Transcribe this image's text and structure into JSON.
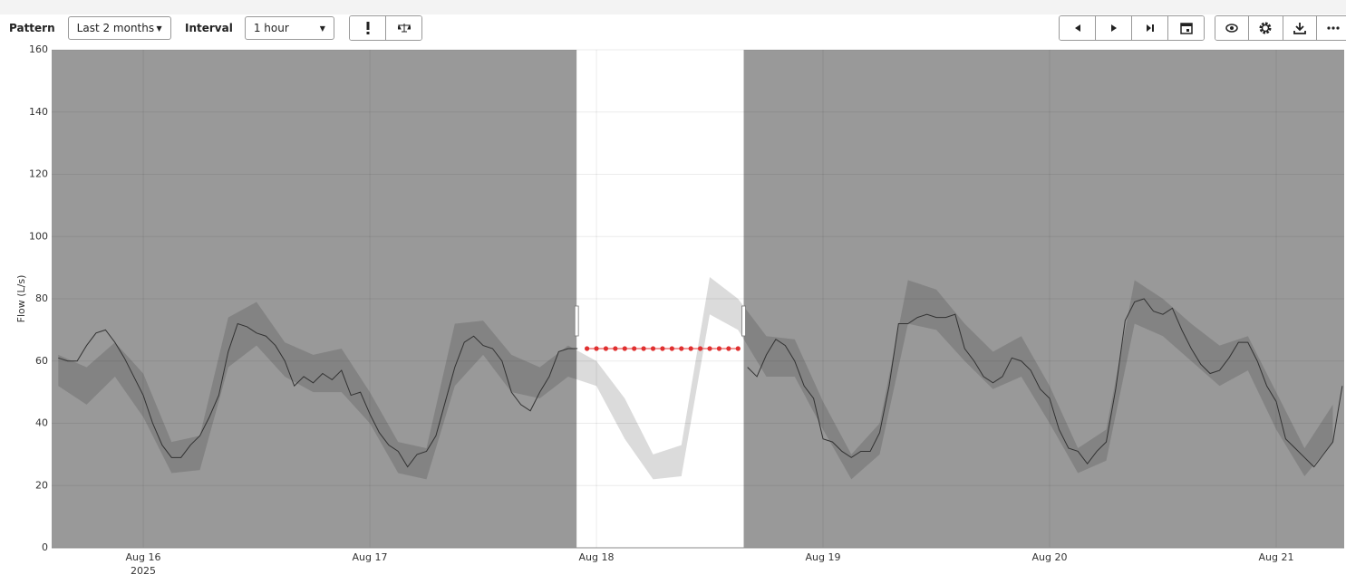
{
  "toolbar": {
    "pattern_label": "Pattern",
    "pattern_value": "Last 2 months",
    "interval_label": "Interval",
    "interval_value": "1 hour"
  },
  "chart_data": {
    "type": "line",
    "y_label": "Flow (L/s)",
    "ylim": [
      0,
      160
    ],
    "yticks": [
      0,
      20,
      40,
      60,
      80,
      100,
      120,
      140,
      160
    ],
    "xlim": [
      -9.7,
      127.2
    ],
    "xticks": [
      {
        "value": 0,
        "label": "Aug 16"
      },
      {
        "value": 24,
        "label": "Aug 17"
      },
      {
        "value": 48,
        "label": "Aug 18"
      },
      {
        "value": 72,
        "label": "Aug 19"
      },
      {
        "value": 96,
        "label": "Aug 20"
      },
      {
        "value": 120,
        "label": "Aug 21"
      }
    ],
    "x_year_label": "2025",
    "grid": true,
    "highlight_range": [
      45.9,
      63.6
    ],
    "x": [
      -9,
      -8,
      -7,
      -6,
      -5,
      -4,
      -3,
      -2,
      -1,
      0,
      1,
      2,
      3,
      4,
      5,
      6,
      7,
      8,
      9,
      10,
      11,
      12,
      13,
      14,
      15,
      16,
      17,
      18,
      19,
      20,
      21,
      22,
      23,
      24,
      25,
      26,
      27,
      28,
      29,
      30,
      31,
      32,
      33,
      34,
      35,
      36,
      37,
      38,
      39,
      40,
      41,
      42,
      43,
      44,
      45,
      46,
      47,
      48,
      49,
      50,
      51,
      52,
      53,
      54,
      55,
      56,
      57,
      58,
      59,
      60,
      61,
      62,
      63,
      64,
      65,
      66,
      67,
      68,
      69,
      70,
      71,
      72,
      73,
      74,
      75,
      76,
      77,
      78,
      79,
      80,
      81,
      82,
      83,
      84,
      85,
      86,
      87,
      88,
      89,
      90,
      91,
      92,
      93,
      94,
      95,
      96,
      97,
      98,
      99,
      100,
      101,
      102,
      103,
      104,
      105,
      106,
      107,
      108,
      109,
      110,
      111,
      112,
      113,
      114,
      115,
      116,
      117,
      118,
      119,
      120,
      121,
      122,
      123,
      124,
      125,
      126,
      127
    ],
    "observed": {
      "color": "#333333",
      "values": [
        61,
        60,
        60,
        65,
        69,
        70,
        66,
        61,
        55,
        49,
        40,
        33,
        29,
        29,
        33,
        36,
        42,
        49,
        63,
        72,
        71,
        69,
        68,
        65,
        60,
        52,
        55,
        53,
        56,
        54,
        57,
        49,
        50,
        43,
        37,
        33,
        31,
        26,
        30,
        31,
        36,
        47,
        58,
        66,
        68,
        65,
        64,
        60,
        50,
        46,
        44,
        50,
        55,
        63,
        64,
        64,
        null,
        null,
        null,
        null,
        null,
        null,
        null,
        null,
        null,
        null,
        null,
        null,
        null,
        null,
        null,
        null,
        null,
        58,
        55,
        62,
        67,
        65,
        60,
        52,
        48,
        35,
        34,
        31,
        29,
        31,
        31,
        37,
        52,
        72,
        72,
        74,
        75,
        74,
        74,
        75,
        64,
        60,
        55,
        53,
        55,
        61,
        60,
        57,
        51,
        48,
        38,
        32,
        31,
        27,
        31,
        34,
        51,
        73,
        79,
        80,
        76,
        75,
        77,
        70,
        64,
        59,
        56,
        57,
        61,
        66,
        66,
        60,
        52,
        47,
        35,
        32,
        29,
        26,
        30,
        34,
        52
      ]
    },
    "interpolated": {
      "color": "#e03030",
      "x": [
        47,
        48,
        49,
        50,
        51,
        52,
        53,
        54,
        55,
        56,
        57,
        58,
        59,
        60,
        61,
        62,
        63
      ],
      "values": [
        64,
        64,
        64,
        64,
        64,
        64,
        64,
        64,
        64,
        64,
        64,
        64,
        64,
        64,
        64,
        64,
        64
      ]
    },
    "band": {
      "x": [
        -9,
        -6,
        -3,
        0,
        3,
        6,
        9,
        12,
        15,
        18,
        21,
        24,
        27,
        30,
        33,
        36,
        39,
        42,
        45,
        48,
        51,
        54,
        57,
        60,
        63,
        66,
        69,
        72,
        75,
        78,
        81,
        84,
        87,
        90,
        93,
        96,
        99,
        102,
        105,
        108,
        111,
        114,
        117,
        120,
        123,
        126
      ],
      "lower": [
        52,
        46,
        55,
        42,
        24,
        25,
        58,
        65,
        55,
        50,
        50,
        40,
        24,
        22,
        52,
        62,
        50,
        48,
        55,
        52,
        35,
        22,
        23,
        75,
        70,
        55,
        55,
        38,
        22,
        30,
        72,
        70,
        60,
        51,
        55,
        40,
        24,
        28,
        72,
        68,
        60,
        52,
        57,
        38,
        23,
        34
      ],
      "upper": [
        62,
        58,
        66,
        56,
        34,
        36,
        74,
        79,
        66,
        62,
        64,
        50,
        34,
        32,
        72,
        73,
        62,
        58,
        65,
        60,
        48,
        30,
        33,
        87,
        80,
        68,
        67,
        47,
        30,
        40,
        86,
        83,
        72,
        63,
        68,
        52,
        32,
        38,
        86,
        80,
        72,
        65,
        68,
        50,
        32,
        46
      ]
    }
  }
}
